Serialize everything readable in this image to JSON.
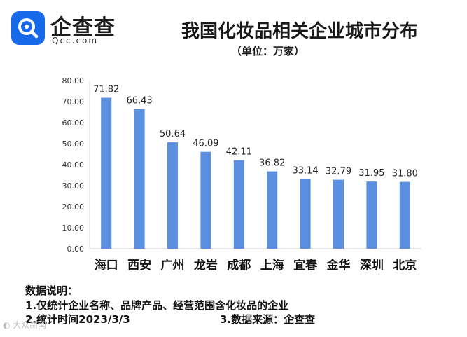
{
  "brand": {
    "name": "企查查",
    "sub": "Qcc.com",
    "color": "#1669e8"
  },
  "chart_data": {
    "type": "bar",
    "title": "我国化妆品相关企业城市分布",
    "unit": "（单位：万家）",
    "categories": [
      "海口",
      "西安",
      "广州",
      "龙岩",
      "成都",
      "上海",
      "宜春",
      "金华",
      "深圳",
      "北京"
    ],
    "values": [
      71.82,
      66.43,
      50.64,
      46.09,
      42.11,
      36.82,
      33.14,
      32.79,
      31.95,
      31.8
    ],
    "value_labels": [
      "71.82",
      "66.43",
      "50.64",
      "46.09",
      "42.11",
      "36.82",
      "33.14",
      "32.79",
      "31.95",
      "31.80"
    ],
    "ylim": [
      0,
      80
    ],
    "yticks": [
      "0.00",
      "10.00",
      "20.00",
      "30.00",
      "40.00",
      "50.00",
      "60.00",
      "70.00",
      "80.00"
    ],
    "bar_color": "#5b8fe0",
    "grid": false,
    "xlabel": "",
    "ylabel": ""
  },
  "notes": {
    "heading": "数据说明：",
    "line1": "1.仅统计企业名称、品牌产品、经营范围含化妆品的企业",
    "line2": "2.统计时间2023/3/3",
    "line3": "3.数据来源：企查查"
  },
  "watermark": "大众新闻"
}
